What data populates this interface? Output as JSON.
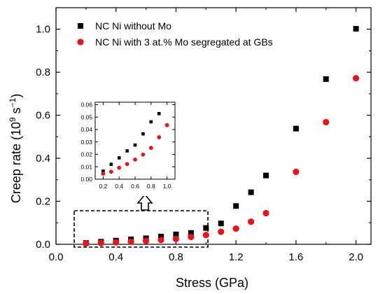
{
  "chart_data": {
    "type": "scatter",
    "xlabel": "Stress (GPa)",
    "ylabel_main": "Creep rate (10",
    "ylabel_sup1": "9",
    "ylabel_mid": " s",
    "ylabel_sup2": "−1",
    "ylabel_end": ")",
    "xlim": [
      0.0,
      2.1
    ],
    "ylim": [
      0.0,
      1.1
    ],
    "xticks": [
      "0.0",
      "0.4",
      "0.8",
      "1.2",
      "1.6",
      "2.0"
    ],
    "yticks": [
      "0.0",
      "0.2",
      "0.4",
      "0.6",
      "0.8",
      "1.0"
    ],
    "legend_position": "top-left",
    "series": [
      {
        "name": "NC Ni without Mo",
        "marker": "square",
        "color": "#000000",
        "x": [
          0.2,
          0.3,
          0.4,
          0.5,
          0.6,
          0.7,
          0.8,
          0.9,
          1.0,
          1.1,
          1.2,
          1.3,
          1.4,
          1.6,
          1.8,
          2.0
        ],
        "y": [
          0.006,
          0.012,
          0.017,
          0.023,
          0.028,
          0.036,
          0.046,
          0.053,
          0.076,
          0.097,
          0.178,
          0.242,
          0.32,
          0.538,
          0.768,
          1.002
        ]
      },
      {
        "name": "NC Ni with 3 at.% Mo segregated at GBs",
        "marker": "circle",
        "color": "#e8141c",
        "x": [
          0.2,
          0.3,
          0.4,
          0.5,
          0.6,
          0.7,
          0.8,
          0.9,
          1.0,
          1.1,
          1.2,
          1.3,
          1.4,
          1.6,
          1.8,
          2.0
        ],
        "y": [
          0.004,
          0.006,
          0.009,
          0.012,
          0.016,
          0.02,
          0.025,
          0.034,
          0.043,
          0.058,
          0.073,
          0.105,
          0.145,
          0.337,
          0.568,
          0.772
        ]
      }
    ],
    "inset": {
      "xlim": [
        0.1,
        1.1
      ],
      "ylim": [
        0.0,
        0.062
      ],
      "xticks": [
        "0.2",
        "0.4",
        "0.6",
        "0.8",
        "1.0"
      ],
      "yticks": [
        "0.00",
        "0.01",
        "0.02",
        "0.03",
        "0.04",
        "0.05",
        "0.06"
      ],
      "series": [
        {
          "name": "NC Ni without Mo",
          "marker": "square",
          "color": "#000000",
          "x": [
            0.2,
            0.3,
            0.4,
            0.5,
            0.6,
            0.7,
            0.8,
            0.9
          ],
          "y": [
            0.0065,
            0.012,
            0.0172,
            0.0228,
            0.0275,
            0.0365,
            0.0462,
            0.0528
          ]
        },
        {
          "name": "NC Ni with 3 at.% Mo segregated at GBs",
          "marker": "circle",
          "color": "#e8141c",
          "x": [
            0.2,
            0.3,
            0.4,
            0.5,
            0.6,
            0.7,
            0.8,
            0.9,
            1.0
          ],
          "y": [
            0.0045,
            0.006,
            0.0092,
            0.0122,
            0.0158,
            0.0198,
            0.0252,
            0.0338,
            0.0435
          ]
        }
      ]
    }
  }
}
